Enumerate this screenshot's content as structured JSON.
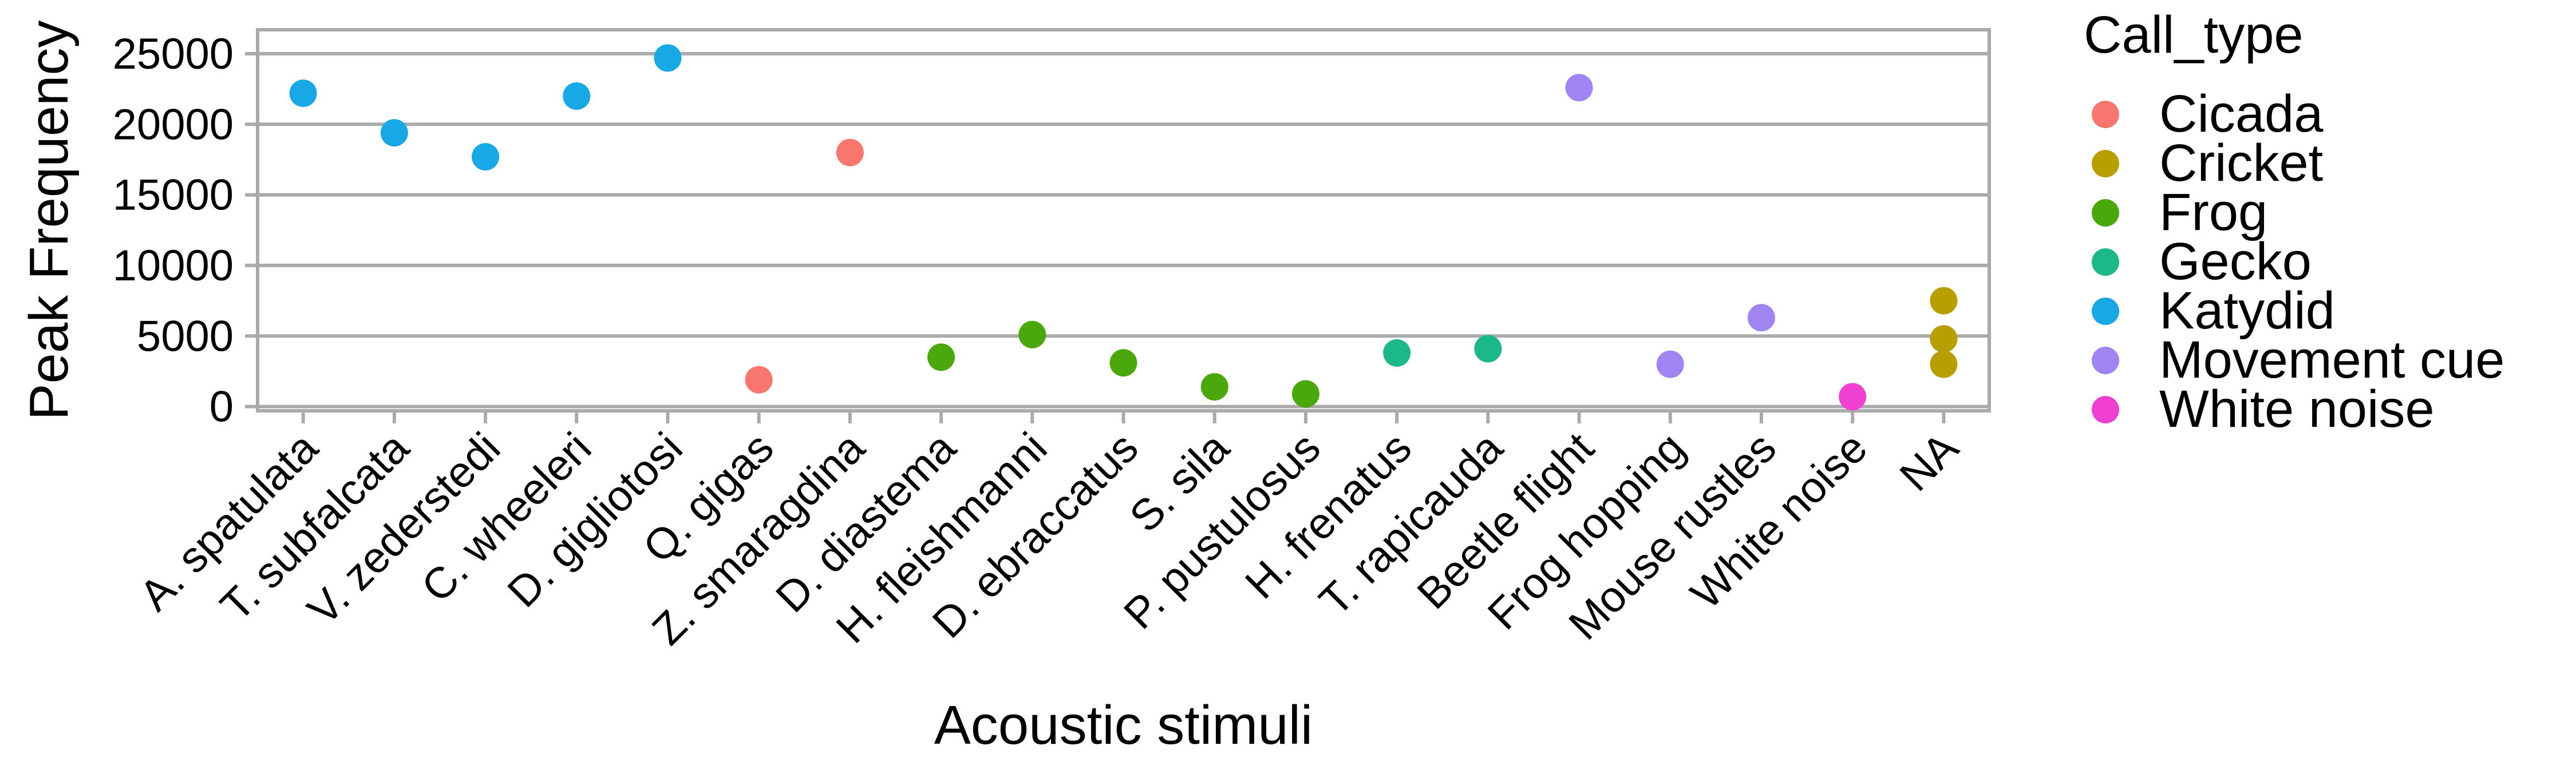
{
  "chart_data": {
    "type": "scatter",
    "title": "",
    "xlabel": "Acoustic stimuli",
    "ylabel": "Peak Frequency",
    "ylim": [
      -300,
      26700
    ],
    "yticks": [
      0,
      5000,
      10000,
      15000,
      20000,
      25000
    ],
    "grid": "horizontal major lines",
    "legend": {
      "title": "Call_type",
      "position": "right"
    },
    "categories": [
      "A. spatulata",
      "T. subfalcata",
      "V. zederstedi",
      "C. wheeleri",
      "D. gigliotosi",
      "Q. gigas",
      "Z. smaragdina",
      "D. diastema",
      "H. fleishmanni",
      "D. ebraccatus",
      "S. sila",
      "P. pustulosus",
      "H. frenatus",
      "T. rapicauda",
      "Beetle flight",
      "Frog hopping",
      "Mouse rustles",
      "White noise",
      "NA"
    ],
    "series": [
      {
        "name": "Cicada",
        "color": "#F8766D",
        "points": [
          {
            "x": "Q. gigas",
            "y": 1900
          },
          {
            "x": "Z. smaragdina",
            "y": 18000
          }
        ]
      },
      {
        "name": "Cricket",
        "color": "#B79F00",
        "points": [
          {
            "x": "NA",
            "y": 7500
          },
          {
            "x": "NA",
            "y": 4800
          },
          {
            "x": "NA",
            "y": 3000
          }
        ]
      },
      {
        "name": "Frog",
        "color": "#4BA80C",
        "points": [
          {
            "x": "D. diastema",
            "y": 3500
          },
          {
            "x": "H. fleishmanni",
            "y": 5100
          },
          {
            "x": "D. ebraccatus",
            "y": 3100
          },
          {
            "x": "S. sila",
            "y": 1400
          },
          {
            "x": "P. pustulosus",
            "y": 900
          }
        ]
      },
      {
        "name": "Gecko",
        "color": "#1DB887",
        "points": [
          {
            "x": "H. frenatus",
            "y": 3800
          },
          {
            "x": "T. rapicauda",
            "y": 4100
          }
        ]
      },
      {
        "name": "Katydid",
        "color": "#19A8E6",
        "points": [
          {
            "x": "A. spatulata",
            "y": 22200
          },
          {
            "x": "T. subfalcata",
            "y": 19400
          },
          {
            "x": "V. zederstedi",
            "y": 17700
          },
          {
            "x": "C. wheeleri",
            "y": 22000
          },
          {
            "x": "D. gigliotosi",
            "y": 24700
          }
        ]
      },
      {
        "name": "Movement cue",
        "color": "#9F84F2",
        "points": [
          {
            "x": "Beetle flight",
            "y": 22600
          },
          {
            "x": "Frog hopping",
            "y": 3000
          },
          {
            "x": "Mouse rustles",
            "y": 6300
          }
        ]
      },
      {
        "name": "White noise",
        "color": "#F040D2",
        "points": [
          {
            "x": "White noise",
            "y": 700
          }
        ]
      }
    ]
  }
}
